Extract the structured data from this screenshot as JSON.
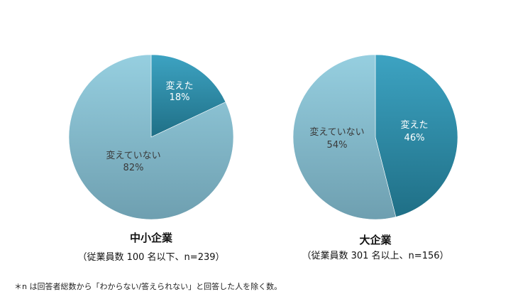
{
  "chart_data": [
    {
      "type": "pie",
      "title": "中小企業",
      "subtitle": "（従業員数 100 名以下、n=239）",
      "slices": [
        {
          "label": "変えた",
          "value": 18,
          "display": "18%",
          "color": "#2a8aa6"
        },
        {
          "label": "変えていない",
          "value": 82,
          "display": "82%",
          "color": "#7fbcd0"
        }
      ]
    },
    {
      "type": "pie",
      "title": "大企業",
      "subtitle": "（従業員数 301 名以上、n=156）",
      "slices": [
        {
          "label": "変えた",
          "value": 46,
          "display": "46%",
          "color": "#2a8aa6"
        },
        {
          "label": "変えていない",
          "value": 54,
          "display": "54%",
          "color": "#7fbcd0"
        }
      ]
    }
  ],
  "footnote": "＊n は回答者総数から「わからない/答えられない」と回答した人を除く数。"
}
